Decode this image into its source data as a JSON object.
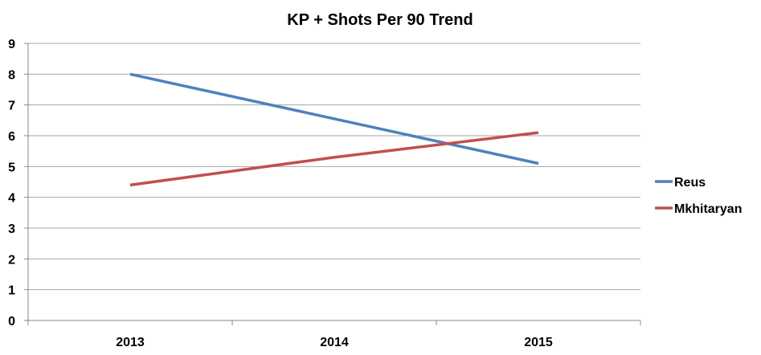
{
  "chart_data": {
    "type": "line",
    "title": "KP + Shots Per 90 Trend",
    "xlabel": "",
    "ylabel": "",
    "categories": [
      "2013",
      "2014",
      "2015"
    ],
    "ylim": [
      0,
      9
    ],
    "yticks": [
      0,
      1,
      2,
      3,
      4,
      5,
      6,
      7,
      8,
      9
    ],
    "grid": true,
    "legend_position": "right",
    "series": [
      {
        "name": "Reus",
        "values": [
          8.0,
          6.55,
          5.1
        ],
        "color": "#4f81bd"
      },
      {
        "name": "Mkhitaryan",
        "values": [
          4.4,
          5.3,
          6.1
        ],
        "color": "#c0504d"
      }
    ]
  }
}
